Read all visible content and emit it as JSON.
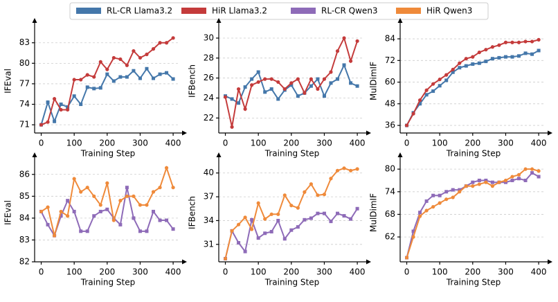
{
  "chart_data": [
    {
      "type": "line",
      "xlabel": "Training Step",
      "ylabel": "IFEval",
      "x": [
        0,
        20,
        40,
        60,
        80,
        100,
        120,
        140,
        160,
        180,
        200,
        220,
        240,
        260,
        280,
        300,
        320,
        340,
        360,
        380,
        400
      ],
      "xlim": [
        -20,
        425
      ],
      "xticks": [
        0,
        100,
        200,
        300,
        400
      ],
      "ylim": [
        69.8,
        85
      ],
      "yticks": [
        71,
        74,
        77,
        80,
        83
      ],
      "grid": true,
      "series": [
        {
          "name": "RL-CR Llama3.2",
          "color": "#4477aa",
          "marker": "square",
          "values": [
            71.0,
            74.3,
            71.5,
            74.0,
            73.6,
            75.2,
            74.0,
            76.5,
            76.3,
            76.4,
            78.4,
            77.4,
            78.0,
            78.0,
            78.9,
            77.8,
            79.2,
            77.8,
            78.4,
            78.6,
            77.7
          ]
        },
        {
          "name": "HiR Llama3.2",
          "color": "#c43b3b",
          "marker": "circle",
          "values": [
            71.0,
            71.4,
            74.8,
            73.2,
            73.2,
            77.6,
            77.6,
            78.3,
            78.0,
            80.2,
            79.1,
            80.8,
            80.6,
            79.7,
            81.8,
            80.8,
            81.3,
            82.1,
            83.0,
            83.0,
            83.7
          ]
        }
      ]
    },
    {
      "type": "line",
      "xlabel": "Training Step",
      "ylabel": "IFBench",
      "x": [
        0,
        20,
        40,
        60,
        80,
        100,
        120,
        140,
        160,
        180,
        200,
        220,
        240,
        260,
        280,
        300,
        320,
        340,
        360,
        380,
        400
      ],
      "xlim": [
        -20,
        425
      ],
      "xticks": [
        0,
        100,
        200,
        300,
        400
      ],
      "ylim": [
        20.5,
        30.9
      ],
      "yticks": [
        22,
        24,
        26,
        28,
        30
      ],
      "grid": true,
      "series": [
        {
          "name": "RL-CR Llama3.2",
          "color": "#4477aa",
          "marker": "square",
          "values": [
            24.2,
            23.9,
            23.5,
            25.1,
            25.9,
            26.6,
            24.6,
            24.9,
            23.9,
            24.8,
            25.3,
            24.2,
            24.5,
            25.2,
            25.9,
            24.2,
            25.5,
            25.9,
            27.3,
            25.5,
            25.2
          ]
        },
        {
          "name": "HiR Llama3.2",
          "color": "#c43b3b",
          "marker": "circle",
          "values": [
            24.1,
            21.1,
            24.9,
            22.9,
            25.3,
            25.6,
            25.9,
            25.9,
            25.6,
            24.9,
            25.5,
            25.9,
            24.5,
            25.9,
            24.9,
            25.9,
            26.6,
            28.7,
            30.0,
            27.7,
            29.7
          ]
        }
      ]
    },
    {
      "type": "line",
      "xlabel": "Training Step",
      "ylabel": "MulDimIF",
      "x": [
        0,
        20,
        40,
        60,
        80,
        100,
        120,
        140,
        160,
        180,
        200,
        220,
        240,
        260,
        280,
        300,
        320,
        340,
        360,
        380,
        400
      ],
      "xlim": [
        -20,
        425
      ],
      "xticks": [
        0,
        100,
        200,
        300,
        400
      ],
      "ylim": [
        31.8,
        89.4
      ],
      "yticks": [
        36,
        48,
        60,
        72,
        84
      ],
      "grid": true,
      "series": [
        {
          "name": "RL-CR Llama3.2",
          "color": "#4477aa",
          "marker": "square",
          "values": [
            36,
            43,
            48,
            53,
            55,
            58,
            61,
            65.5,
            68,
            69,
            70,
            70.5,
            71.5,
            73,
            73.5,
            74,
            74,
            74.5,
            76,
            75.5,
            77.5
          ]
        },
        {
          "name": "HiR Llama3.2",
          "color": "#c43b3b",
          "marker": "circle",
          "values": [
            36,
            42.5,
            50,
            55.5,
            59,
            61.5,
            64,
            67,
            70.5,
            73,
            74,
            76.5,
            78,
            79.5,
            80.5,
            82,
            82,
            82,
            82.5,
            82.5,
            83.5
          ]
        }
      ]
    },
    {
      "type": "line",
      "xlabel": "Training Step",
      "ylabel": "IFEval",
      "x": [
        0,
        20,
        40,
        60,
        80,
        100,
        120,
        140,
        160,
        180,
        200,
        220,
        240,
        260,
        280,
        300,
        320,
        340,
        360,
        380,
        400
      ],
      "xlim": [
        -20,
        425
      ],
      "xticks": [
        0,
        100,
        200,
        300,
        400
      ],
      "ylim": [
        82,
        86.5
      ],
      "yticks": [
        82,
        83,
        84,
        85,
        86
      ],
      "grid": true,
      "series": [
        {
          "name": "RL-CR Qwen3",
          "color": "#8e6bb8",
          "marker": "square",
          "values": [
            84.3,
            83.7,
            83.2,
            84.1,
            84.8,
            84.3,
            83.4,
            83.4,
            84.1,
            84.3,
            84.4,
            84.0,
            83.7,
            85.4,
            84.0,
            83.4,
            83.4,
            84.3,
            83.9,
            83.9,
            83.5
          ]
        },
        {
          "name": "HiR Qwen3",
          "color": "#ef8a3a",
          "marker": "circle",
          "values": [
            84.3,
            84.5,
            83.2,
            84.3,
            84.1,
            85.8,
            85.2,
            85.4,
            85.0,
            84.6,
            85.6,
            83.9,
            84.8,
            85.0,
            85.0,
            84.6,
            84.6,
            85.2,
            85.4,
            86.3,
            85.4
          ]
        }
      ]
    },
    {
      "type": "line",
      "xlabel": "Training Step",
      "ylabel": "IFBench",
      "x": [
        0,
        20,
        40,
        60,
        80,
        100,
        120,
        140,
        160,
        180,
        200,
        220,
        240,
        260,
        280,
        300,
        320,
        340,
        360,
        380,
        400
      ],
      "xlim": [
        -20,
        425
      ],
      "xticks": [
        0,
        100,
        200,
        300,
        400
      ],
      "ylim": [
        28.8,
        41.2
      ],
      "yticks": [
        31,
        34,
        37,
        40
      ],
      "grid": true,
      "series": [
        {
          "name": "RL-CR Qwen3",
          "color": "#8e6bb8",
          "marker": "square",
          "values": [
            29.2,
            32.7,
            31.2,
            30.1,
            34.1,
            31.8,
            32.4,
            32.6,
            34.0,
            31.7,
            32.8,
            33.2,
            34.1,
            34.3,
            34.9,
            34.9,
            33.9,
            34.9,
            34.6,
            34.2,
            35.5
          ]
        },
        {
          "name": "HiR Qwen3",
          "color": "#ef8a3a",
          "marker": "circle",
          "values": [
            29.2,
            32.7,
            33.5,
            34.4,
            32.9,
            36.2,
            34.2,
            34.8,
            34.8,
            37.2,
            35.9,
            35.6,
            37.6,
            38.6,
            37.2,
            37.3,
            39.3,
            40.3,
            40.6,
            40.3,
            40.5
          ]
        }
      ]
    },
    {
      "type": "line",
      "xlabel": "Training Step",
      "ylabel": "MulDimIF",
      "x": [
        0,
        20,
        40,
        60,
        80,
        100,
        120,
        140,
        160,
        180,
        200,
        220,
        240,
        260,
        280,
        300,
        320,
        340,
        360,
        380,
        400
      ],
      "xlim": [
        -20,
        425
      ],
      "xticks": [
        0,
        100,
        200,
        300,
        400
      ],
      "ylim": [
        55.4,
        81.5
      ],
      "yticks": [
        62,
        68,
        74,
        80
      ],
      "grid": true,
      "series": [
        {
          "name": "RL-CR Qwen3",
          "color": "#8e6bb8",
          "marker": "square",
          "values": [
            56.5,
            63.5,
            68.5,
            71.5,
            73,
            73,
            74,
            74.5,
            74.5,
            75.5,
            76.5,
            77,
            77,
            76.5,
            76.5,
            76.5,
            77,
            77.5,
            77,
            79,
            78
          ]
        },
        {
          "name": "HiR Qwen3",
          "color": "#ef8a3a",
          "marker": "circle",
          "values": [
            56.5,
            62,
            67.5,
            69,
            70,
            71,
            72,
            72.5,
            74,
            75.5,
            75.5,
            76,
            76.5,
            75.5,
            76.5,
            77,
            78,
            78.5,
            80,
            80,
            79.5
          ]
        }
      ]
    }
  ]
}
